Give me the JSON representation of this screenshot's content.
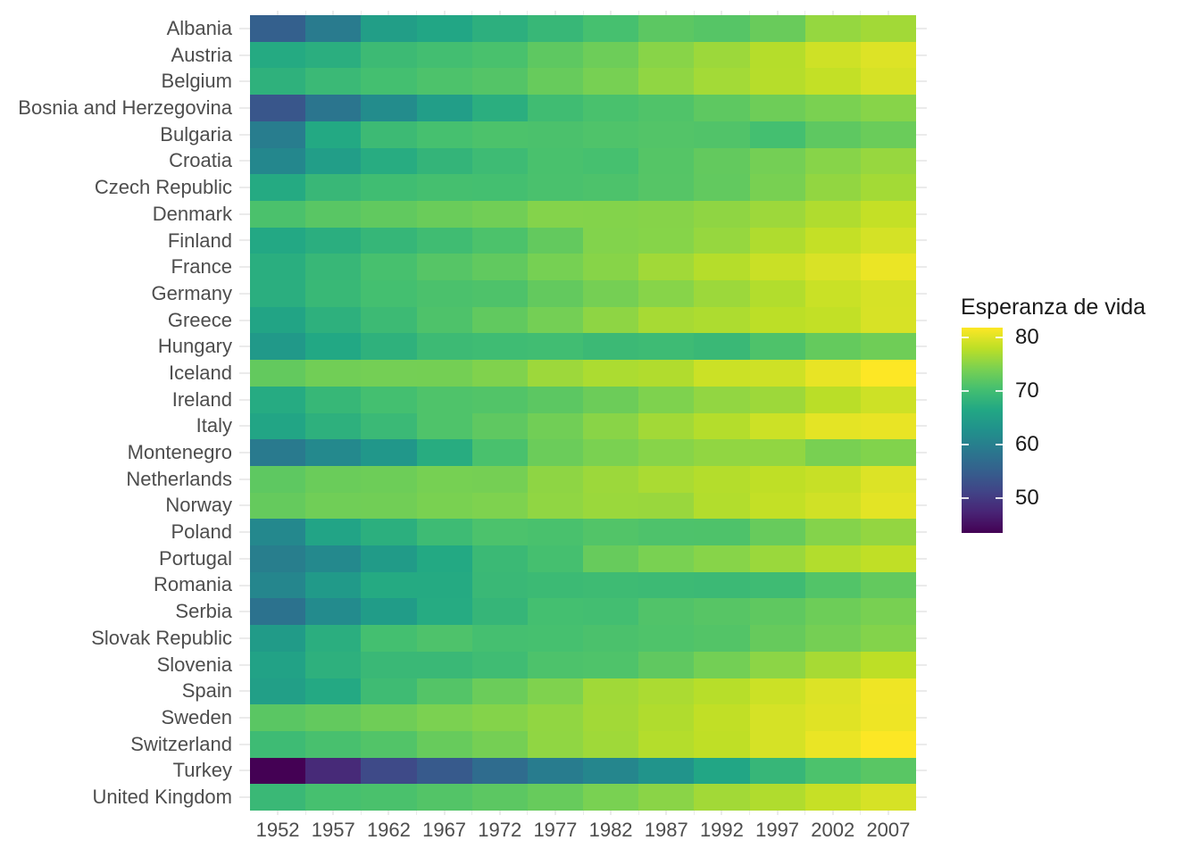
{
  "chart_data": {
    "type": "heatmap",
    "title": "",
    "xlabel": "",
    "ylabel": "",
    "legend_title": "Esperanza de vida",
    "legend_position": "right",
    "x": [
      "1952",
      "1957",
      "1962",
      "1967",
      "1972",
      "1977",
      "1982",
      "1987",
      "1992",
      "1997",
      "2002",
      "2007"
    ],
    "categories": [
      "Albania",
      "Austria",
      "Belgium",
      "Bosnia and Herzegovina",
      "Bulgaria",
      "Croatia",
      "Czech Republic",
      "Denmark",
      "Finland",
      "France",
      "Germany",
      "Greece",
      "Hungary",
      "Iceland",
      "Ireland",
      "Italy",
      "Montenegro",
      "Netherlands",
      "Norway",
      "Poland",
      "Portugal",
      "Romania",
      "Serbia",
      "Slovak Republic",
      "Slovenia",
      "Spain",
      "Sweden",
      "Switzerland",
      "Turkey",
      "United Kingdom"
    ],
    "series": [
      {
        "name": "Albania",
        "values": [
          55.23,
          59.28,
          64.82,
          66.22,
          67.69,
          68.93,
          70.42,
          72.0,
          71.581,
          72.95,
          75.651,
          76.423
        ]
      },
      {
        "name": "Austria",
        "values": [
          66.8,
          67.48,
          69.54,
          70.14,
          70.63,
          72.17,
          73.18,
          74.94,
          76.04,
          77.51,
          78.98,
          79.829
        ]
      },
      {
        "name": "Belgium",
        "values": [
          68.0,
          69.24,
          70.25,
          70.94,
          71.44,
          72.8,
          73.93,
          75.35,
          76.46,
          77.53,
          78.32,
          79.441
        ]
      },
      {
        "name": "Bosnia and Herzegovina",
        "values": [
          53.82,
          58.45,
          61.93,
          64.79,
          67.45,
          69.86,
          70.69,
          71.14,
          72.178,
          73.244,
          74.09,
          74.852
        ]
      },
      {
        "name": "Bulgaria",
        "values": [
          59.6,
          66.61,
          69.51,
          70.42,
          70.9,
          70.81,
          71.08,
          71.34,
          71.19,
          70.32,
          72.14,
          73.005
        ]
      },
      {
        "name": "Croatia",
        "values": [
          61.21,
          64.77,
          67.13,
          68.5,
          69.61,
          70.64,
          70.46,
          71.52,
          72.527,
          73.68,
          74.876,
          75.748
        ]
      },
      {
        "name": "Czech Republic",
        "values": [
          66.87,
          69.03,
          69.9,
          70.38,
          70.29,
          70.71,
          70.96,
          71.58,
          72.4,
          74.01,
          75.51,
          76.486
        ]
      },
      {
        "name": "Denmark",
        "values": [
          70.78,
          71.81,
          72.35,
          72.96,
          73.47,
          74.69,
          74.63,
          74.8,
          75.33,
          76.11,
          77.18,
          78.332
        ]
      },
      {
        "name": "Finland",
        "values": [
          66.55,
          67.49,
          68.75,
          69.83,
          70.87,
          72.52,
          74.55,
          74.83,
          75.7,
          77.13,
          78.37,
          79.313
        ]
      },
      {
        "name": "France",
        "values": [
          67.41,
          68.93,
          70.51,
          71.55,
          72.38,
          73.83,
          74.89,
          76.34,
          77.46,
          78.64,
          79.59,
          80.657
        ]
      },
      {
        "name": "Germany",
        "values": [
          67.5,
          69.1,
          70.3,
          70.8,
          71.0,
          72.5,
          73.8,
          74.847,
          76.07,
          77.34,
          78.67,
          79.406
        ]
      },
      {
        "name": "Greece",
        "values": [
          65.86,
          67.86,
          69.51,
          71.0,
          72.34,
          73.68,
          75.24,
          76.67,
          77.03,
          77.869,
          78.256,
          79.483
        ]
      },
      {
        "name": "Hungary",
        "values": [
          64.03,
          66.41,
          67.96,
          69.5,
          69.76,
          69.95,
          69.39,
          69.58,
          69.17,
          71.04,
          72.59,
          73.338
        ]
      },
      {
        "name": "Iceland",
        "values": [
          72.49,
          73.47,
          73.68,
          73.73,
          74.46,
          76.11,
          76.99,
          77.23,
          78.77,
          78.95,
          80.5,
          81.757
        ]
      },
      {
        "name": "Ireland",
        "values": [
          66.91,
          68.9,
          70.29,
          71.08,
          71.28,
          72.03,
          73.1,
          74.36,
          75.467,
          76.122,
          77.783,
          78.885
        ]
      },
      {
        "name": "Italy",
        "values": [
          65.94,
          67.81,
          69.24,
          71.06,
          72.19,
          73.48,
          74.98,
          76.42,
          77.44,
          78.82,
          80.24,
          80.546
        ]
      },
      {
        "name": "Montenegro",
        "values": [
          59.164,
          61.448,
          63.728,
          67.178,
          70.636,
          73.066,
          74.101,
          74.865,
          75.435,
          75.445,
          73.981,
          74.543
        ]
      },
      {
        "name": "Netherlands",
        "values": [
          72.13,
          72.99,
          73.23,
          73.82,
          73.75,
          75.24,
          76.05,
          76.83,
          77.42,
          78.03,
          78.53,
          79.762
        ]
      },
      {
        "name": "Norway",
        "values": [
          72.67,
          73.44,
          73.47,
          74.08,
          74.34,
          75.37,
          75.97,
          75.89,
          77.32,
          78.32,
          79.05,
          80.196
        ]
      },
      {
        "name": "Poland",
        "values": [
          61.31,
          65.77,
          67.64,
          69.61,
          70.85,
          70.67,
          71.32,
          70.98,
          70.99,
          72.75,
          74.67,
          75.563
        ]
      },
      {
        "name": "Portugal",
        "values": [
          59.82,
          61.51,
          64.39,
          66.6,
          69.26,
          70.41,
          72.77,
          74.06,
          74.86,
          75.97,
          77.29,
          78.098
        ]
      },
      {
        "name": "Romania",
        "values": [
          61.05,
          64.1,
          66.8,
          66.8,
          69.21,
          69.46,
          69.66,
          69.53,
          69.36,
          69.72,
          71.322,
          72.476
        ]
      },
      {
        "name": "Serbia",
        "values": [
          57.996,
          61.685,
          64.531,
          66.914,
          68.7,
          70.3,
          70.162,
          71.218,
          71.659,
          72.232,
          73.213,
          74.002
        ]
      },
      {
        "name": "Slovak Republic",
        "values": [
          64.36,
          67.45,
          70.33,
          70.98,
          70.35,
          70.45,
          70.8,
          71.08,
          71.38,
          72.71,
          73.8,
          74.663
        ]
      },
      {
        "name": "Slovenia",
        "values": [
          65.57,
          67.85,
          69.15,
          69.18,
          69.82,
          70.97,
          71.063,
          72.25,
          73.64,
          75.13,
          76.66,
          77.926
        ]
      },
      {
        "name": "Spain",
        "values": [
          64.94,
          66.66,
          69.69,
          71.44,
          73.06,
          74.39,
          76.3,
          76.9,
          77.57,
          78.77,
          79.78,
          80.941
        ]
      },
      {
        "name": "Sweden",
        "values": [
          71.86,
          72.49,
          73.37,
          74.16,
          74.72,
          75.44,
          76.42,
          77.19,
          78.16,
          79.39,
          80.04,
          80.884
        ]
      },
      {
        "name": "Switzerland",
        "values": [
          69.62,
          70.56,
          71.32,
          72.77,
          73.78,
          75.39,
          76.21,
          77.41,
          78.03,
          79.37,
          80.62,
          81.701
        ]
      },
      {
        "name": "Turkey",
        "values": [
          43.585,
          48.079,
          52.098,
          54.336,
          57.005,
          59.507,
          61.036,
          63.108,
          66.146,
          68.835,
          70.845,
          71.777
        ]
      },
      {
        "name": "United Kingdom",
        "values": [
          69.18,
          70.42,
          70.76,
          71.36,
          72.01,
          72.76,
          74.04,
          75.007,
          76.42,
          77.218,
          78.471,
          79.425
        ]
      }
    ],
    "color_scale": {
      "palette": "viridis",
      "domain": [
        43.585,
        81.757
      ],
      "stops": [
        "#440154",
        "#482475",
        "#414487",
        "#355f8d",
        "#2a788e",
        "#21918c",
        "#22a884",
        "#44bf70",
        "#7ad151",
        "#bddf26",
        "#fde725"
      ],
      "legend_ticks": [
        80,
        70,
        60,
        50
      ]
    },
    "grid": true
  },
  "style": {
    "background": "#ffffff",
    "axis_text_color": "#4d4d4d",
    "legend_text_color": "#1a1a1a",
    "grid_color": "#ebebeb",
    "legend_tick_mark_color": "rgba(255,255,255,0.85)"
  }
}
